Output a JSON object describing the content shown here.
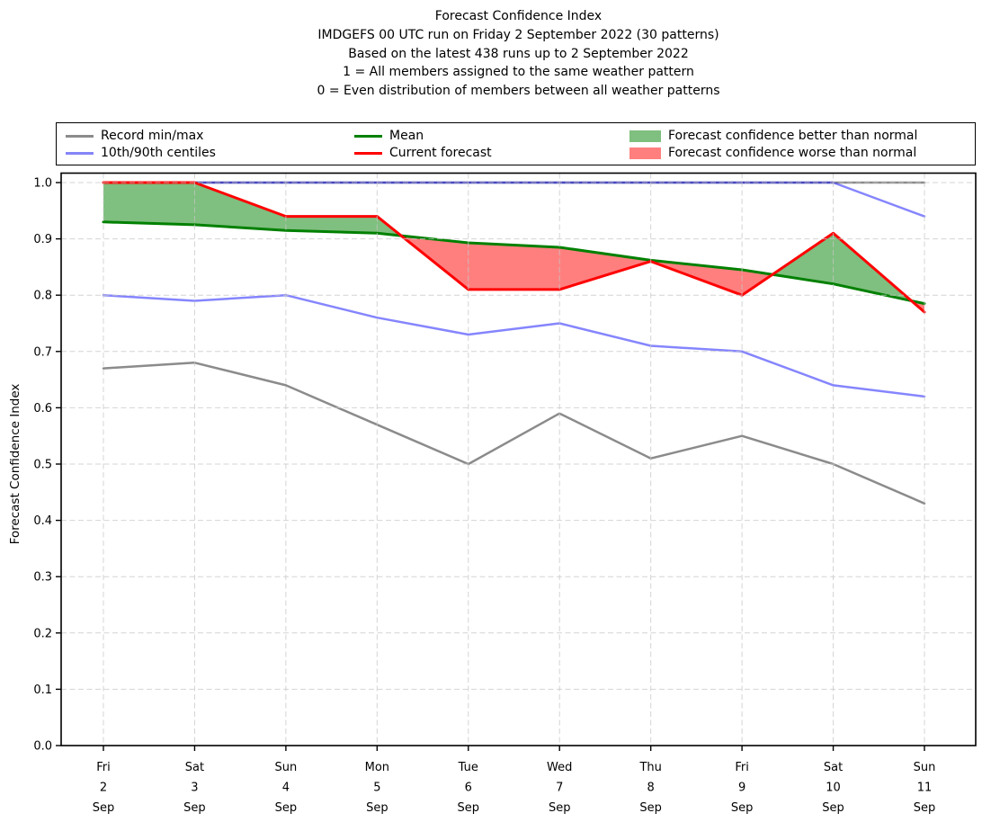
{
  "title_lines": [
    "Forecast Confidence Index",
    "IMDGEFS 00 UTC run on Friday 2 September 2022 (30 patterns)",
    "Based on the latest 438 runs up to 2 September 2022",
    "1 = All members assigned to the same weather pattern",
    "0 = Even distribution of members between all weather patterns"
  ],
  "ylabel": "Forecast Confidence Index",
  "legend": {
    "items": [
      {
        "label": "Record min/max",
        "swatch": "line",
        "color": "#8b8b8b"
      },
      {
        "label": "10th/90th centiles",
        "swatch": "line",
        "color": "#8585f7"
      },
      {
        "label": "Mean",
        "swatch": "line",
        "color": "#008000"
      },
      {
        "label": "Current forecast",
        "swatch": "line",
        "color": "#ff0000"
      },
      {
        "label": "Forecast confidence better than normal",
        "swatch": "patch",
        "color": "#7fbf7f"
      },
      {
        "label": "Forecast confidence worse than normal",
        "swatch": "patch",
        "color": "#ff7f7f"
      }
    ]
  },
  "chart_data": {
    "type": "line",
    "title": "Forecast Confidence Index",
    "xlabel": "",
    "ylabel": "Forecast Confidence Index",
    "ylim": [
      0.0,
      1.0
    ],
    "grid": true,
    "legend_position": "top",
    "x_categories": [
      {
        "day": "Fri",
        "date": "2",
        "month": "Sep"
      },
      {
        "day": "Sat",
        "date": "3",
        "month": "Sep"
      },
      {
        "day": "Sun",
        "date": "4",
        "month": "Sep"
      },
      {
        "day": "Mon",
        "date": "5",
        "month": "Sep"
      },
      {
        "day": "Tue",
        "date": "6",
        "month": "Sep"
      },
      {
        "day": "Wed",
        "date": "7",
        "month": "Sep"
      },
      {
        "day": "Thu",
        "date": "8",
        "month": "Sep"
      },
      {
        "day": "Fri",
        "date": "9",
        "month": "Sep"
      },
      {
        "day": "Sat",
        "date": "10",
        "month": "Sep"
      },
      {
        "day": "Sun",
        "date": "11",
        "month": "Sep"
      }
    ],
    "y_ticks": [
      "0.0",
      "0.1",
      "0.2",
      "0.3",
      "0.4",
      "0.5",
      "0.6",
      "0.7",
      "0.8",
      "0.9",
      "1.0"
    ],
    "series": [
      {
        "name": "record_max",
        "label": "Record min/max",
        "color": "#8b8b8b",
        "width": 2.5,
        "opacity": 1,
        "values": [
          1.0,
          1.0,
          1.0,
          1.0,
          1.0,
          1.0,
          1.0,
          1.0,
          1.0,
          1.0
        ]
      },
      {
        "name": "record_min",
        "label": "Record min/max",
        "color": "#8b8b8b",
        "width": 2.5,
        "opacity": 1,
        "values": [
          0.67,
          0.68,
          0.64,
          0.57,
          0.5,
          0.59,
          0.51,
          0.55,
          0.5,
          0.43
        ]
      },
      {
        "name": "centile_90",
        "label": "10th/90th centiles",
        "color": "#0000ff",
        "width": 2.5,
        "opacity": 0.48,
        "values": [
          1.0,
          1.0,
          1.0,
          1.0,
          1.0,
          1.0,
          1.0,
          1.0,
          1.0,
          0.94
        ]
      },
      {
        "name": "centile_10",
        "label": "10th/90th centiles",
        "color": "#0000ff",
        "width": 2.5,
        "opacity": 0.48,
        "values": [
          0.8,
          0.79,
          0.8,
          0.76,
          0.73,
          0.75,
          0.71,
          0.7,
          0.64,
          0.62
        ]
      },
      {
        "name": "mean",
        "label": "Mean",
        "color": "#008000",
        "width": 3,
        "opacity": 1,
        "values": [
          0.93,
          0.925,
          0.915,
          0.91,
          0.893,
          0.885,
          0.862,
          0.845,
          0.82,
          0.785
        ]
      },
      {
        "name": "current_forecast",
        "label": "Current forecast",
        "color": "#ff0000",
        "width": 3,
        "opacity": 1,
        "values": [
          1.0,
          1.0,
          0.94,
          0.94,
          0.81,
          0.81,
          0.86,
          0.8,
          0.91,
          0.77
        ]
      }
    ],
    "fills": {
      "better_than_normal": {
        "label": "Forecast confidence better than normal",
        "color": "#008000",
        "opacity": 0.5
      },
      "worse_than_normal": {
        "label": "Forecast confidence worse than normal",
        "color": "#ff0000",
        "opacity": 0.5
      }
    }
  }
}
